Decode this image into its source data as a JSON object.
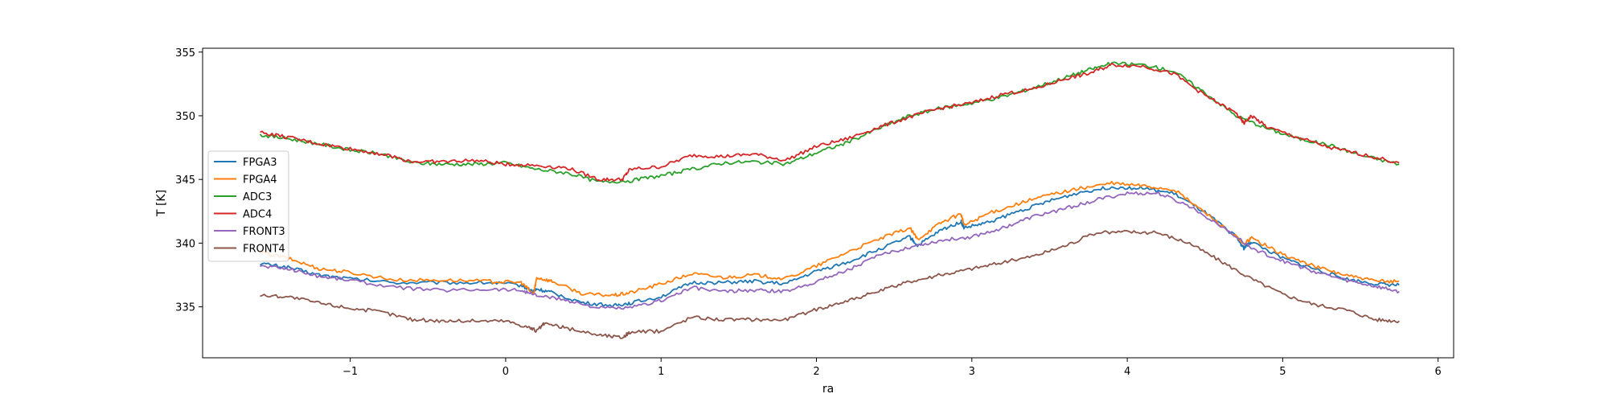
{
  "chart_data": {
    "type": "line",
    "xlabel": "ra",
    "ylabel": "T [K]",
    "xlim": [
      -1.95,
      6.1
    ],
    "ylim": [
      331,
      355.3
    ],
    "xticks": [
      -1,
      0,
      1,
      2,
      3,
      4,
      5,
      6
    ],
    "yticks": [
      335,
      340,
      345,
      350,
      355
    ],
    "xtick_labels": [
      "−1",
      "0",
      "1",
      "2",
      "3",
      "4",
      "5",
      "6"
    ],
    "ytick_labels": [
      "335",
      "340",
      "345",
      "350",
      "355"
    ],
    "legend_placement": "center-left",
    "grid": false,
    "series": [
      {
        "name": "FPGA3",
        "color": "#1f77b4",
        "points": [
          [
            -1.58,
            338.4
          ],
          [
            -1.4,
            338.1
          ],
          [
            -1.2,
            337.5
          ],
          [
            -1.0,
            337.2
          ],
          [
            -0.7,
            336.9
          ],
          [
            -0.4,
            336.9
          ],
          [
            -0.1,
            336.9
          ],
          [
            0.1,
            336.7
          ],
          [
            0.18,
            336.2
          ],
          [
            0.2,
            336.4
          ],
          [
            0.3,
            336.1
          ],
          [
            0.5,
            335.3
          ],
          [
            0.7,
            335.1
          ],
          [
            0.8,
            335.3
          ],
          [
            1.0,
            335.8
          ],
          [
            1.2,
            336.9
          ],
          [
            1.4,
            336.9
          ],
          [
            1.6,
            337.0
          ],
          [
            1.8,
            336.8
          ],
          [
            2.0,
            337.8
          ],
          [
            2.2,
            338.5
          ],
          [
            2.4,
            339.5
          ],
          [
            2.6,
            340.5
          ],
          [
            2.65,
            339.8
          ],
          [
            2.8,
            341.0
          ],
          [
            2.93,
            341.7
          ],
          [
            2.95,
            341.2
          ],
          [
            3.1,
            341.6
          ],
          [
            3.3,
            342.5
          ],
          [
            3.5,
            343.3
          ],
          [
            3.7,
            344.0
          ],
          [
            3.9,
            344.4
          ],
          [
            4.1,
            344.3
          ],
          [
            4.3,
            343.9
          ],
          [
            4.5,
            342.4
          ],
          [
            4.7,
            340.5
          ],
          [
            4.75,
            339.6
          ],
          [
            4.8,
            340.1
          ],
          [
            5.0,
            338.8
          ],
          [
            5.2,
            338.0
          ],
          [
            5.4,
            337.2
          ],
          [
            5.6,
            336.8
          ],
          [
            5.75,
            336.7
          ]
        ]
      },
      {
        "name": "FPGA4",
        "color": "#ff7f0e",
        "points": [
          [
            -1.58,
            339.3
          ],
          [
            -1.4,
            338.8
          ],
          [
            -1.2,
            338.0
          ],
          [
            -1.0,
            337.7
          ],
          [
            -0.7,
            337.1
          ],
          [
            -0.4,
            337.1
          ],
          [
            -0.1,
            337.0
          ],
          [
            0.1,
            336.9
          ],
          [
            0.18,
            336.0
          ],
          [
            0.2,
            337.3
          ],
          [
            0.3,
            337.0
          ],
          [
            0.5,
            336.0
          ],
          [
            0.7,
            335.9
          ],
          [
            0.8,
            336.1
          ],
          [
            1.0,
            336.8
          ],
          [
            1.2,
            337.6
          ],
          [
            1.4,
            337.3
          ],
          [
            1.6,
            337.5
          ],
          [
            1.8,
            337.2
          ],
          [
            2.0,
            338.2
          ],
          [
            2.2,
            339.3
          ],
          [
            2.4,
            340.3
          ],
          [
            2.6,
            341.2
          ],
          [
            2.65,
            340.3
          ],
          [
            2.8,
            341.6
          ],
          [
            2.93,
            342.3
          ],
          [
            2.95,
            341.4
          ],
          [
            3.1,
            342.3
          ],
          [
            3.3,
            343.1
          ],
          [
            3.5,
            343.8
          ],
          [
            3.7,
            344.3
          ],
          [
            3.9,
            344.7
          ],
          [
            4.1,
            344.5
          ],
          [
            4.3,
            344.2
          ],
          [
            4.5,
            342.4
          ],
          [
            4.7,
            340.5
          ],
          [
            4.75,
            339.9
          ],
          [
            4.8,
            340.4
          ],
          [
            5.0,
            339.1
          ],
          [
            5.2,
            338.2
          ],
          [
            5.4,
            337.5
          ],
          [
            5.6,
            337.0
          ],
          [
            5.75,
            337.0
          ]
        ]
      },
      {
        "name": "ADC3",
        "color": "#2ca02c",
        "points": [
          [
            -1.58,
            348.5
          ],
          [
            -1.4,
            348.2
          ],
          [
            -1.2,
            347.8
          ],
          [
            -1.0,
            347.3
          ],
          [
            -0.8,
            347.0
          ],
          [
            -0.6,
            346.3
          ],
          [
            -0.4,
            346.2
          ],
          [
            -0.2,
            346.2
          ],
          [
            0.0,
            346.3
          ],
          [
            0.2,
            345.8
          ],
          [
            0.4,
            345.5
          ],
          [
            0.6,
            344.8
          ],
          [
            0.8,
            344.9
          ],
          [
            1.0,
            345.3
          ],
          [
            1.2,
            345.8
          ],
          [
            1.4,
            346.3
          ],
          [
            1.6,
            346.4
          ],
          [
            1.8,
            346.2
          ],
          [
            2.0,
            347.1
          ],
          [
            2.2,
            347.9
          ],
          [
            2.4,
            349.0
          ],
          [
            2.6,
            350.0
          ],
          [
            2.8,
            350.6
          ],
          [
            3.0,
            351.0
          ],
          [
            3.2,
            351.5
          ],
          [
            3.4,
            352.2
          ],
          [
            3.6,
            353.0
          ],
          [
            3.75,
            353.6
          ],
          [
            3.9,
            354.1
          ],
          [
            4.1,
            354.0
          ],
          [
            4.3,
            353.5
          ],
          [
            4.5,
            351.8
          ],
          [
            4.7,
            350.0
          ],
          [
            4.9,
            349.0
          ],
          [
            5.1,
            348.2
          ],
          [
            5.3,
            347.7
          ],
          [
            5.5,
            346.9
          ],
          [
            5.75,
            346.2
          ]
        ]
      },
      {
        "name": "ADC4",
        "color": "#d62728",
        "points": [
          [
            -1.58,
            348.7
          ],
          [
            -1.4,
            348.3
          ],
          [
            -1.2,
            347.8
          ],
          [
            -1.0,
            347.4
          ],
          [
            -0.8,
            347.0
          ],
          [
            -0.6,
            346.4
          ],
          [
            -0.4,
            346.4
          ],
          [
            -0.2,
            346.5
          ],
          [
            0.0,
            346.2
          ],
          [
            0.2,
            346.1
          ],
          [
            0.4,
            345.9
          ],
          [
            0.6,
            345.0
          ],
          [
            0.75,
            345.0
          ],
          [
            0.8,
            345.8
          ],
          [
            1.0,
            346.0
          ],
          [
            1.2,
            346.9
          ],
          [
            1.4,
            346.8
          ],
          [
            1.6,
            347.0
          ],
          [
            1.8,
            346.5
          ],
          [
            2.0,
            347.6
          ],
          [
            2.2,
            348.2
          ],
          [
            2.4,
            349.1
          ],
          [
            2.6,
            349.9
          ],
          [
            2.8,
            350.6
          ],
          [
            3.0,
            351.0
          ],
          [
            3.2,
            351.7
          ],
          [
            3.4,
            352.1
          ],
          [
            3.6,
            352.9
          ],
          [
            3.75,
            353.3
          ],
          [
            3.9,
            354.0
          ],
          [
            4.1,
            353.9
          ],
          [
            4.3,
            353.3
          ],
          [
            4.5,
            351.6
          ],
          [
            4.7,
            350.2
          ],
          [
            4.75,
            349.4
          ],
          [
            4.8,
            350.0
          ],
          [
            4.9,
            349.1
          ],
          [
            5.1,
            348.3
          ],
          [
            5.3,
            347.5
          ],
          [
            5.5,
            347.0
          ],
          [
            5.75,
            346.3
          ]
        ]
      },
      {
        "name": "FRONT3",
        "color": "#9467bd",
        "points": [
          [
            -1.58,
            338.2
          ],
          [
            -1.4,
            338.0
          ],
          [
            -1.2,
            337.4
          ],
          [
            -1.0,
            337.1
          ],
          [
            -0.7,
            336.5
          ],
          [
            -0.4,
            336.3
          ],
          [
            -0.1,
            336.4
          ],
          [
            0.1,
            336.3
          ],
          [
            0.2,
            335.9
          ],
          [
            0.4,
            335.5
          ],
          [
            0.6,
            334.9
          ],
          [
            0.8,
            334.9
          ],
          [
            1.0,
            335.5
          ],
          [
            1.2,
            336.5
          ],
          [
            1.4,
            336.2
          ],
          [
            1.6,
            336.3
          ],
          [
            1.8,
            336.2
          ],
          [
            2.0,
            337.0
          ],
          [
            2.2,
            337.9
          ],
          [
            2.4,
            339.0
          ],
          [
            2.6,
            339.7
          ],
          [
            2.8,
            340.2
          ],
          [
            3.0,
            340.5
          ],
          [
            3.2,
            341.2
          ],
          [
            3.4,
            342.1
          ],
          [
            3.6,
            342.7
          ],
          [
            3.8,
            343.4
          ],
          [
            4.0,
            343.9
          ],
          [
            4.2,
            343.9
          ],
          [
            4.4,
            342.9
          ],
          [
            4.6,
            341.4
          ],
          [
            4.8,
            339.6
          ],
          [
            5.0,
            338.6
          ],
          [
            5.2,
            337.8
          ],
          [
            5.4,
            337.1
          ],
          [
            5.6,
            336.6
          ],
          [
            5.75,
            336.2
          ]
        ]
      },
      {
        "name": "FRONT4",
        "color": "#8c564b",
        "points": [
          [
            -1.58,
            335.9
          ],
          [
            -1.4,
            335.8
          ],
          [
            -1.2,
            335.3
          ],
          [
            -1.0,
            334.9
          ],
          [
            -0.8,
            334.6
          ],
          [
            -0.6,
            334.0
          ],
          [
            -0.4,
            333.9
          ],
          [
            -0.2,
            333.9
          ],
          [
            0.0,
            333.9
          ],
          [
            0.15,
            333.4
          ],
          [
            0.2,
            333.1
          ],
          [
            0.25,
            333.7
          ],
          [
            0.4,
            333.3
          ],
          [
            0.6,
            332.8
          ],
          [
            0.75,
            332.6
          ],
          [
            0.8,
            333.0
          ],
          [
            1.0,
            333.1
          ],
          [
            1.2,
            334.2
          ],
          [
            1.4,
            334.0
          ],
          [
            1.6,
            334.0
          ],
          [
            1.8,
            334.0
          ],
          [
            2.0,
            334.8
          ],
          [
            2.2,
            335.5
          ],
          [
            2.4,
            336.2
          ],
          [
            2.6,
            337.0
          ],
          [
            2.8,
            337.5
          ],
          [
            3.0,
            338.0
          ],
          [
            3.2,
            338.5
          ],
          [
            3.4,
            339.0
          ],
          [
            3.6,
            339.8
          ],
          [
            3.8,
            340.8
          ],
          [
            4.0,
            340.9
          ],
          [
            4.2,
            340.8
          ],
          [
            4.4,
            340.0
          ],
          [
            4.6,
            338.6
          ],
          [
            4.8,
            337.2
          ],
          [
            5.0,
            336.0
          ],
          [
            5.2,
            335.2
          ],
          [
            5.4,
            334.8
          ],
          [
            5.6,
            334.0
          ],
          [
            5.75,
            333.9
          ]
        ]
      }
    ]
  }
}
